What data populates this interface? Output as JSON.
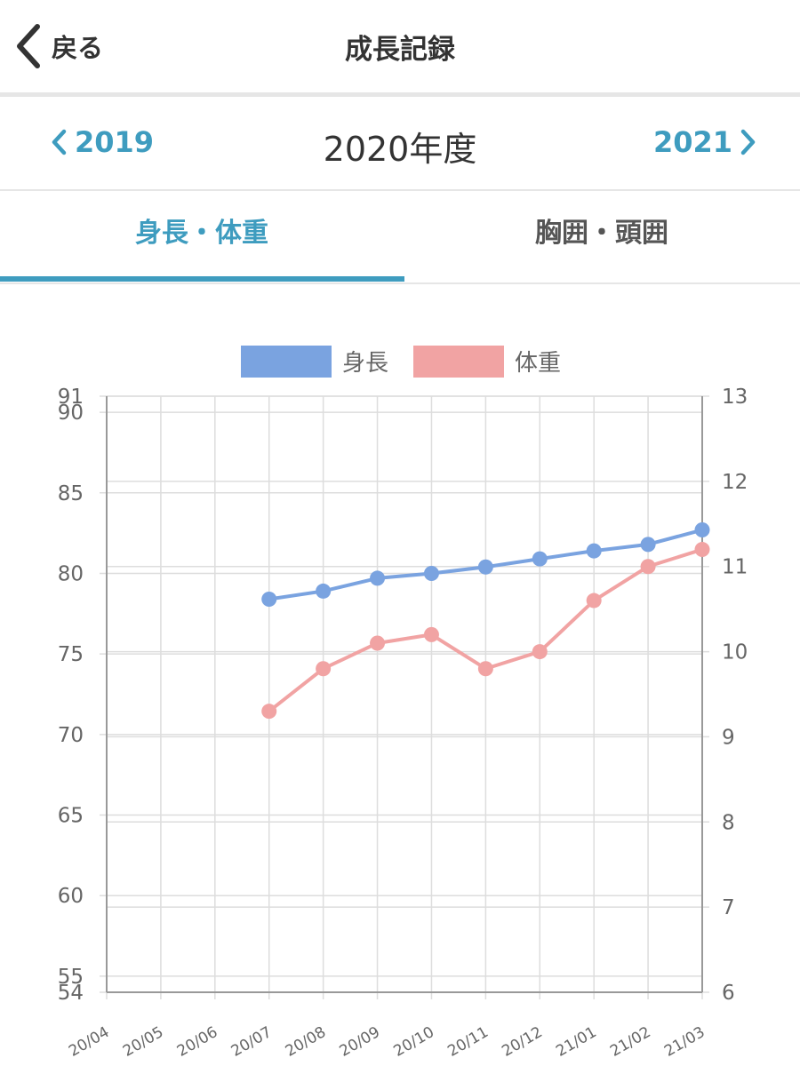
{
  "header": {
    "back_label": "戻る",
    "title": "成長記録"
  },
  "year_nav": {
    "prev": "2019",
    "current": "2020年度",
    "next": "2021"
  },
  "tabs": [
    {
      "label": "身長・体重",
      "active": true
    },
    {
      "label": "胸囲・頭囲",
      "active": false
    }
  ],
  "colors": {
    "accent": "#3e9cbf",
    "height": "#7aa3e0",
    "weight": "#f1a3a3"
  },
  "chart_data": {
    "type": "line",
    "categories": [
      "20/04",
      "20/05",
      "20/06",
      "20/07",
      "20/08",
      "20/09",
      "20/10",
      "20/11",
      "20/12",
      "21/01",
      "21/02",
      "21/03"
    ],
    "series": [
      {
        "name": "身長",
        "axis": "left",
        "values": [
          null,
          null,
          null,
          78.4,
          78.9,
          79.7,
          80.0,
          80.4,
          80.9,
          81.4,
          81.8,
          82.7
        ]
      },
      {
        "name": "体重",
        "axis": "right",
        "values": [
          null,
          null,
          null,
          9.3,
          9.8,
          10.1,
          10.2,
          9.8,
          10.0,
          10.6,
          11.0,
          11.2
        ]
      }
    ],
    "y_left": {
      "min": 54,
      "max": 91,
      "ticks": [
        54,
        55,
        60,
        65,
        70,
        75,
        80,
        85,
        90,
        91
      ]
    },
    "y_right": {
      "min": 6,
      "max": 13,
      "ticks": [
        6,
        7,
        8,
        9,
        10,
        11,
        12,
        13
      ]
    },
    "legend_position": "top",
    "grid": true
  }
}
